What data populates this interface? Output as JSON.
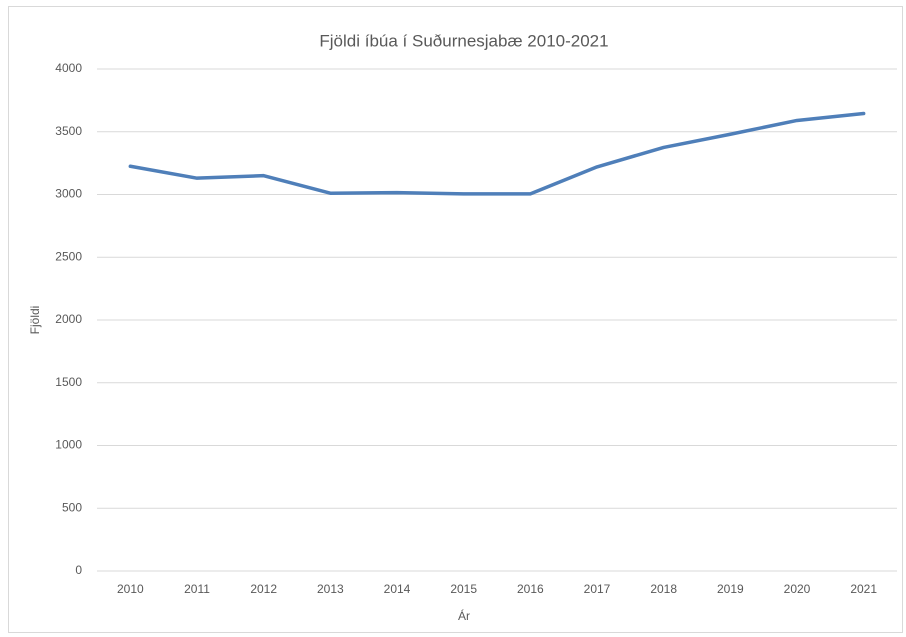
{
  "chart_data": {
    "type": "line",
    "title": "Fjöldi íbúa í Suðurnesjabæ 2010-2021",
    "x_label": "Ár",
    "y_label": "Fjöldi",
    "categories": [
      "2010",
      "2011",
      "2012",
      "2013",
      "2014",
      "2015",
      "2016",
      "2017",
      "2018",
      "2019",
      "2020",
      "2021"
    ],
    "series": [
      {
        "name": "Fjöldi",
        "color": "#4f7fb9",
        "values": [
          3225,
          3130,
          3150,
          3010,
          3015,
          3005,
          3005,
          3220,
          3375,
          3480,
          3590,
          3645
        ]
      }
    ],
    "ylim": [
      0,
      4000
    ],
    "yticks": [
      0,
      500,
      1000,
      1500,
      2000,
      2500,
      3000,
      3500,
      4000
    ],
    "grid": true
  }
}
